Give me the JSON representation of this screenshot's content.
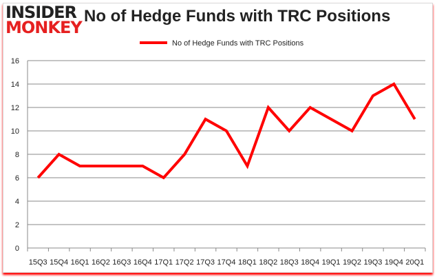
{
  "logo": {
    "line1": "INSIDER",
    "line2": "MONKEY"
  },
  "chart_data": {
    "type": "line",
    "title": "No of Hedge Funds with TRC Positions",
    "categories": [
      "15Q3",
      "15Q4",
      "16Q1",
      "16Q2",
      "16Q3",
      "16Q4",
      "17Q1",
      "17Q2",
      "17Q3",
      "17Q4",
      "18Q1",
      "18Q2",
      "18Q3",
      "18Q4",
      "19Q1",
      "19Q2",
      "19Q3",
      "19Q4",
      "20Q1"
    ],
    "series": [
      {
        "name": "No of Hedge Funds with TRC Positions",
        "color": "#ff0000",
        "values": [
          6,
          8,
          7,
          7,
          7,
          7,
          6,
          8,
          11,
          10,
          7,
          12,
          10,
          12,
          11,
          10,
          13,
          14,
          11
        ]
      }
    ],
    "yticks": [
      "0",
      "2",
      "4",
      "6",
      "8",
      "10",
      "12",
      "14",
      "16"
    ],
    "ylim": [
      0,
      16
    ],
    "grid": true,
    "legend": "top-center"
  }
}
